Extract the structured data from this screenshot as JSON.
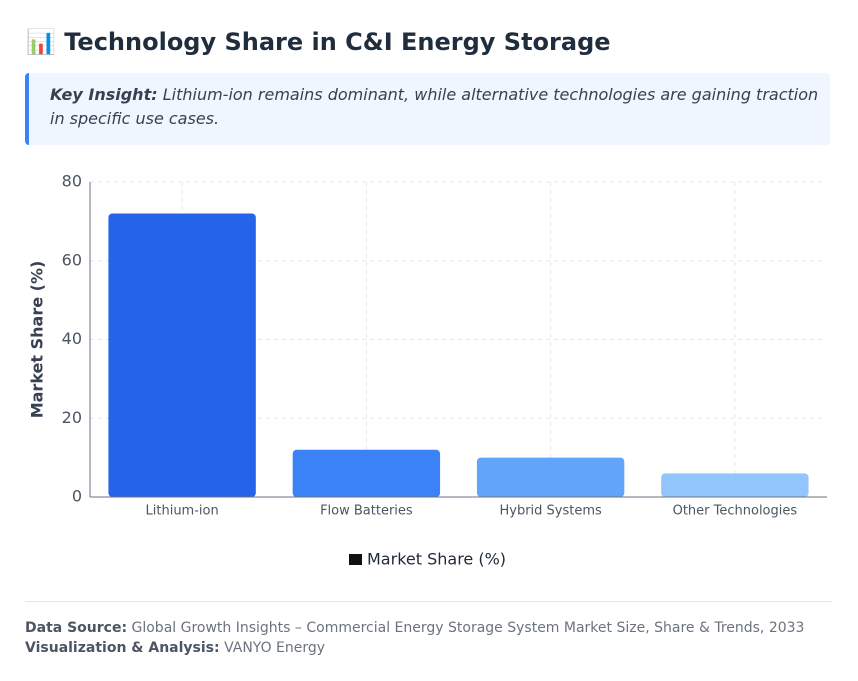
{
  "header": {
    "title": "📊 Technology Share in C&I Energy Storage"
  },
  "insight": {
    "label": "Key Insight:",
    "text": "Lithium-ion remains dominant, while alternative technologies are gaining traction in specific use cases."
  },
  "chart_data": {
    "type": "bar",
    "y_label": "Market Share (%)",
    "categories": [
      "Lithium-ion",
      "Flow Batteries",
      "Hybrid Systems",
      "Other Technologies"
    ],
    "series": [
      {
        "name": "Market Share (%)",
        "color": "#111111",
        "bar_colors": [
          "#2563eb",
          "#3b82f6",
          "#60a5fa",
          "#93c5fd"
        ],
        "values": [
          72,
          12,
          10,
          6
        ]
      }
    ],
    "ylim": [
      0,
      80
    ],
    "yticks": [
      0,
      20,
      40,
      60,
      80
    ],
    "grid": true
  },
  "footer": {
    "source_label": "Data Source:",
    "source": "Global Growth Insights – Commercial Energy Storage System Market Size, Share & Trends, 2033",
    "analysis_label": "Visualization & Analysis:",
    "analysis": "VANYO Energy"
  }
}
